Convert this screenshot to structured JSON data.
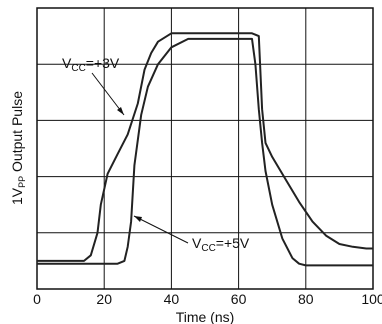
{
  "chart_data": {
    "type": "line",
    "title": "",
    "xlabel": "Time (ns)",
    "ylabel_main": "1V",
    "ylabel_sub": "PP",
    "ylabel_rest": " Output Pulse",
    "xlim": [
      0,
      100
    ],
    "ylim": [
      0,
      5
    ],
    "x_ticks": [
      0,
      20,
      40,
      60,
      80,
      100
    ],
    "grid": true,
    "grid_columns": 5,
    "grid_rows": 5,
    "series": [
      {
        "name": "VCC=+3V",
        "color": "#222222",
        "x": [
          0,
          14,
          16,
          18,
          19,
          21,
          24,
          27,
          30,
          32,
          34,
          36,
          40,
          45,
          50,
          55,
          60,
          64,
          66,
          67,
          68,
          70,
          74,
          78,
          82,
          86,
          90,
          94,
          98,
          100
        ],
        "y": [
          0.5,
          0.5,
          0.6,
          1.0,
          1.5,
          2.05,
          2.4,
          2.75,
          3.3,
          3.9,
          4.2,
          4.4,
          4.55,
          4.55,
          4.55,
          4.55,
          4.55,
          4.55,
          4.5,
          3.2,
          2.6,
          2.35,
          1.95,
          1.55,
          1.2,
          0.95,
          0.8,
          0.75,
          0.72,
          0.72
        ]
      },
      {
        "name": "VCC=+5V",
        "color": "#222222",
        "x": [
          0,
          24,
          26,
          27,
          28,
          29,
          31,
          33,
          36,
          40,
          45,
          50,
          55,
          60,
          64,
          65,
          66,
          67,
          68,
          70,
          73,
          76,
          78,
          80,
          85,
          90,
          95,
          100
        ],
        "y": [
          0.45,
          0.45,
          0.5,
          0.75,
          1.2,
          2.2,
          3.1,
          3.6,
          4.0,
          4.3,
          4.45,
          4.45,
          4.45,
          4.45,
          4.45,
          4.0,
          3.2,
          2.6,
          2.1,
          1.5,
          0.9,
          0.55,
          0.45,
          0.42,
          0.42,
          0.42,
          0.42,
          0.42
        ]
      }
    ],
    "annotations": [
      {
        "main": "V",
        "sub": "CC",
        "rest": "=+3V"
      },
      {
        "main": "V",
        "sub": "CC",
        "rest": "=+5V"
      }
    ]
  }
}
